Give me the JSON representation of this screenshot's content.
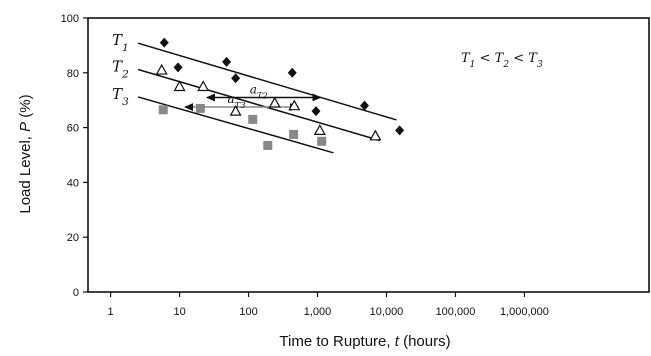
{
  "chart_data": {
    "type": "scatter",
    "x_scale": "log",
    "xlim": [
      0.47,
      64000000
    ],
    "ylim": [
      0,
      100
    ],
    "x_ticks": [
      1,
      10,
      100,
      1000,
      10000,
      100000,
      1000000
    ],
    "x_tick_labels": [
      "1",
      "10",
      "100",
      "1,000",
      "10,000",
      "100,000",
      "1,000,000"
    ],
    "y_ticks": [
      0,
      20,
      40,
      60,
      80,
      100
    ],
    "y_tick_labels": [
      "0",
      "20",
      "40",
      "60",
      "80",
      "100"
    ],
    "xlabel": {
      "text": "Time to Rupture, ",
      "var": "t",
      "unit": " (hours)"
    },
    "ylabel": {
      "text": "Load Level, ",
      "var": "P",
      "unit": " (%)"
    },
    "grid": false,
    "series": [
      {
        "name": {
          "base": "T",
          "sub": "1"
        },
        "marker": "diamond",
        "color": "#111111",
        "points": [
          [
            6,
            91
          ],
          [
            9.5,
            82
          ],
          [
            48,
            84
          ],
          [
            65,
            78
          ],
          [
            430,
            80
          ],
          [
            950,
            66
          ],
          [
            4800,
            68
          ],
          [
            15500,
            59
          ]
        ],
        "fit": [
          [
            2.5,
            90.8
          ],
          [
            14000,
            62.8
          ]
        ]
      },
      {
        "name": {
          "base": "T",
          "sub": "2"
        },
        "marker": "triangle-open",
        "color": "#111111",
        "points": [
          [
            5.5,
            81
          ],
          [
            10,
            75
          ],
          [
            22,
            75
          ],
          [
            65,
            66
          ],
          [
            240,
            69
          ],
          [
            460,
            68
          ],
          [
            1080,
            59
          ],
          [
            6900,
            57
          ]
        ],
        "fit": [
          [
            2.5,
            81.2
          ],
          [
            8000,
            55.3
          ]
        ]
      },
      {
        "name": {
          "base": "T",
          "sub": "3"
        },
        "marker": "square",
        "color": "#888888",
        "points": [
          [
            5.8,
            66.5
          ],
          [
            20,
            67
          ],
          [
            115,
            63
          ],
          [
            190,
            53.5
          ],
          [
            450,
            57.5
          ],
          [
            1150,
            55
          ]
        ],
        "fit": [
          [
            2.5,
            71.2
          ],
          [
            1700,
            50.8
          ]
        ]
      }
    ],
    "annotations": {
      "order_note": {
        "parts": [
          [
            "T",
            "1"
          ],
          [
            "T",
            "2"
          ],
          [
            "T",
            "3"
          ]
        ],
        "sep": " < "
      },
      "shift_factors": [
        {
          "base": "a",
          "sub": "T2",
          "from": [
            25,
            71
          ],
          "to": [
            1100,
            71
          ]
        },
        {
          "base": "a",
          "sub": "T3",
          "from": [
            12,
            67.5
          ],
          "to": [
            520,
            67.5
          ]
        }
      ]
    }
  }
}
